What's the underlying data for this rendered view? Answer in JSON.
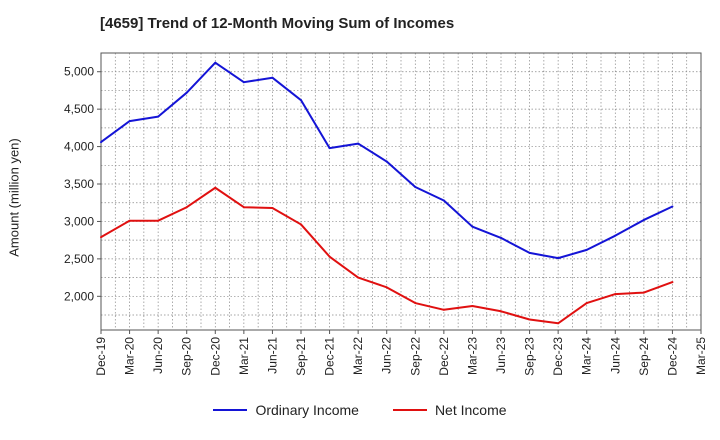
{
  "colors": {
    "ordinary": "#1414d6",
    "net": "#e01010",
    "grid": "#888888",
    "axis": "#555555"
  },
  "chart_data": {
    "type": "line",
    "title": "[4659]  Trend of 12-Month Moving Sum of Incomes",
    "ylabel": "Amount (million yen)",
    "xlabel": "",
    "ylim": [
      1550,
      5250
    ],
    "yticks": [
      2000,
      2500,
      3000,
      3500,
      4000,
      4500,
      5000
    ],
    "ytick_labels": [
      "2,000",
      "2,500",
      "3,000",
      "3,500",
      "4,000",
      "4,500",
      "5,000"
    ],
    "x_tick_labels": [
      "Dec-19",
      "Mar-20",
      "Jun-20",
      "Sep-20",
      "Dec-20",
      "Mar-21",
      "Jun-21",
      "Sep-21",
      "Dec-21",
      "Mar-22",
      "Jun-22",
      "Sep-22",
      "Dec-22",
      "Mar-23",
      "Jun-23",
      "Sep-23",
      "Dec-23",
      "Mar-24",
      "Jun-24",
      "Sep-24",
      "Dec-24",
      "Mar-25"
    ],
    "grid": true,
    "legend_position": "bottom",
    "series": [
      {
        "name": "Ordinary Income",
        "color": "#1414d6",
        "x": [
          "Dec-19",
          "Mar-20",
          "Jun-20",
          "Sep-20",
          "Dec-20",
          "Mar-21",
          "Jun-21",
          "Sep-21",
          "Dec-21",
          "Mar-22",
          "Jun-22",
          "Sep-22",
          "Dec-22",
          "Mar-23",
          "Jun-23",
          "Sep-23",
          "Dec-23",
          "Mar-24",
          "Jun-24",
          "Sep-24",
          "Dec-24"
        ],
        "values": [
          4060,
          4340,
          4400,
          4720,
          5120,
          4860,
          4920,
          4620,
          3980,
          4040,
          3800,
          3460,
          3280,
          2930,
          2780,
          2580,
          2510,
          2620,
          2810,
          3020,
          3200
        ]
      },
      {
        "name": "Net Income",
        "color": "#e01010",
        "x": [
          "Dec-19",
          "Mar-20",
          "Jun-20",
          "Sep-20",
          "Dec-20",
          "Mar-21",
          "Jun-21",
          "Sep-21",
          "Dec-21",
          "Mar-22",
          "Jun-22",
          "Sep-22",
          "Dec-22",
          "Mar-23",
          "Jun-23",
          "Sep-23",
          "Dec-23",
          "Mar-24",
          "Jun-24",
          "Sep-24",
          "Dec-24"
        ],
        "values": [
          2790,
          3010,
          3010,
          3190,
          3450,
          3190,
          3180,
          2960,
          2530,
          2250,
          2120,
          1910,
          1820,
          1870,
          1800,
          1690,
          1640,
          1910,
          2030,
          2050,
          2190
        ]
      }
    ]
  }
}
